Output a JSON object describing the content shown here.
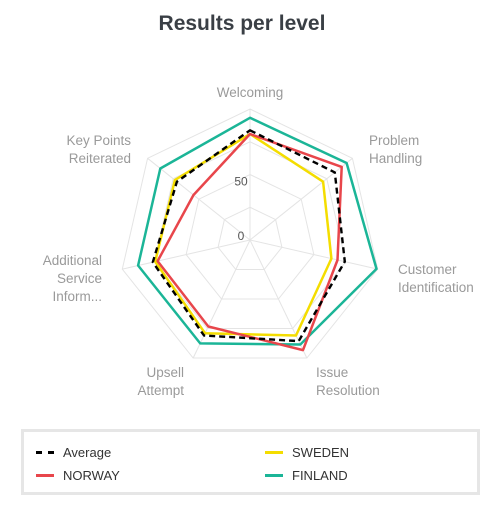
{
  "chart_data": {
    "type": "radar",
    "title": "Results per level",
    "axes": [
      {
        "label": [
          "Welcoming"
        ]
      },
      {
        "label": [
          "Problem",
          "Handling"
        ]
      },
      {
        "label": [
          "Customer",
          "Identification"
        ]
      },
      {
        "label": [
          "Issue",
          "Resolution"
        ]
      },
      {
        "label": [
          "Upsell",
          "Attempt"
        ]
      },
      {
        "label": [
          "Additional",
          "Service",
          "Inform..."
        ]
      },
      {
        "label": [
          "Key Points",
          "Reiterated"
        ]
      }
    ],
    "ticks": [
      "0",
      "50"
    ],
    "series": [
      {
        "name": "Average",
        "color": "#000000",
        "dashed": true,
        "values": [
          83,
          82,
          73,
          85,
          80,
          75,
          70
        ]
      },
      {
        "name": "SWEDEN",
        "color": "#f4dd00",
        "dashed": false,
        "values": [
          80,
          70,
          62,
          80,
          78,
          73,
          72
        ]
      },
      {
        "name": "NORWAY",
        "color": "#e8464b",
        "dashed": false,
        "values": [
          80,
          89,
          67,
          93,
          72,
          71,
          53
        ]
      },
      {
        "name": "FINLAND",
        "color": "#1bb597",
        "dashed": false,
        "values": [
          93,
          94,
          99,
          88,
          87,
          87,
          87
        ]
      }
    ],
    "legend_order": [
      "Average",
      "SWEDEN",
      "NORWAY",
      "FINLAND"
    ]
  }
}
